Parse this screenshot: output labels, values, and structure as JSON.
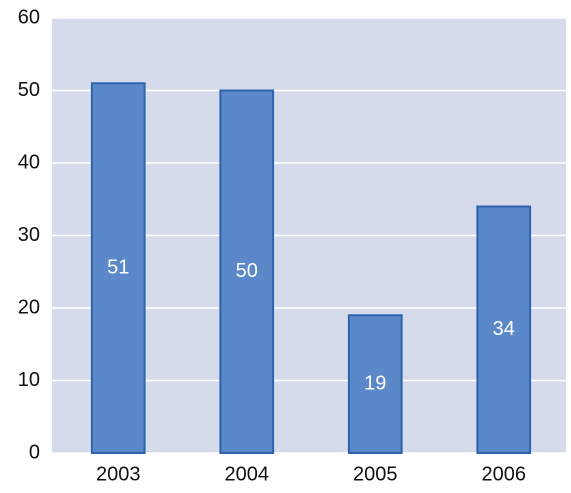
{
  "chart_data": {
    "type": "bar",
    "categories": [
      "2003",
      "2004",
      "2005",
      "2006"
    ],
    "values": [
      51,
      50,
      19,
      34
    ],
    "color": "#5b88c8",
    "ylim": [
      0,
      60
    ],
    "yticks": [
      0,
      10,
      20,
      30,
      40,
      50,
      60
    ],
    "grid": true,
    "data_labels": true
  }
}
